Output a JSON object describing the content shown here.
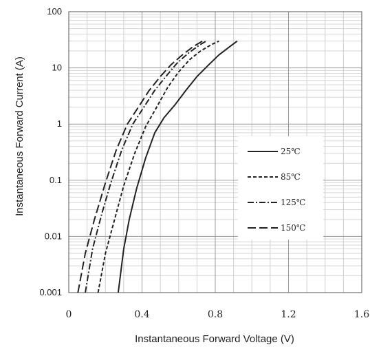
{
  "chart_data": {
    "type": "line",
    "title": "",
    "xlabel": "Instantaneous Forward Voltage (V)",
    "ylabel": "Instantaneous Forward Current (A)",
    "xlim": [
      0,
      1.6
    ],
    "ylim": [
      0.001,
      100
    ],
    "yscale": "log",
    "xticks": [
      {
        "value": 0,
        "label": "0"
      },
      {
        "value": 0.4,
        "label": "0.4"
      },
      {
        "value": 0.8,
        "label": "0.8"
      },
      {
        "value": 1.2,
        "label": "1.2"
      },
      {
        "value": 1.6,
        "label": "1.6"
      }
    ],
    "yticks": [
      {
        "value": 0.001,
        "label": "0.001"
      },
      {
        "value": 0.01,
        "label": "0.01"
      },
      {
        "value": 0.1,
        "label": "0.1"
      },
      {
        "value": 1,
        "label": "1"
      },
      {
        "value": 10,
        "label": "10"
      },
      {
        "value": 100,
        "label": "100"
      }
    ],
    "grid": true,
    "legend_position": "center-right",
    "series": [
      {
        "name": "25℃",
        "style": "solid",
        "color": "#222222",
        "points": [
          [
            0.27,
            0.001
          ],
          [
            0.3,
            0.006
          ],
          [
            0.33,
            0.02
          ],
          [
            0.37,
            0.07
          ],
          [
            0.42,
            0.25
          ],
          [
            0.47,
            0.7
          ],
          [
            0.52,
            1.3
          ],
          [
            0.58,
            2.2
          ],
          [
            0.64,
            4
          ],
          [
            0.7,
            7
          ],
          [
            0.76,
            11
          ],
          [
            0.82,
            17
          ],
          [
            0.88,
            24
          ],
          [
            0.92,
            30
          ]
        ]
      },
      {
        "name": "85℃",
        "style": "dash",
        "color": "#222222",
        "points": [
          [
            0.16,
            0.001
          ],
          [
            0.2,
            0.005
          ],
          [
            0.25,
            0.02
          ],
          [
            0.3,
            0.08
          ],
          [
            0.36,
            0.3
          ],
          [
            0.42,
            0.9
          ],
          [
            0.48,
            2
          ],
          [
            0.54,
            4.5
          ],
          [
            0.6,
            8.5
          ],
          [
            0.66,
            14
          ],
          [
            0.72,
            20
          ],
          [
            0.78,
            26
          ],
          [
            0.82,
            30
          ]
        ]
      },
      {
        "name": "125℃",
        "style": "dashdot",
        "color": "#222222",
        "points": [
          [
            0.09,
            0.001
          ],
          [
            0.13,
            0.006
          ],
          [
            0.18,
            0.025
          ],
          [
            0.23,
            0.09
          ],
          [
            0.29,
            0.35
          ],
          [
            0.35,
            1
          ],
          [
            0.41,
            2
          ],
          [
            0.47,
            4
          ],
          [
            0.53,
            7
          ],
          [
            0.59,
            12
          ],
          [
            0.65,
            18
          ],
          [
            0.71,
            25
          ],
          [
            0.75,
            30
          ]
        ]
      },
      {
        "name": "150℃",
        "style": "longdash",
        "color": "#222222",
        "points": [
          [
            0.05,
            0.001
          ],
          [
            0.09,
            0.005
          ],
          [
            0.14,
            0.02
          ],
          [
            0.2,
            0.09
          ],
          [
            0.26,
            0.35
          ],
          [
            0.32,
            1
          ],
          [
            0.38,
            2
          ],
          [
            0.44,
            4
          ],
          [
            0.5,
            7
          ],
          [
            0.56,
            11.5
          ],
          [
            0.62,
            17
          ],
          [
            0.68,
            24
          ],
          [
            0.73,
            30
          ]
        ]
      }
    ]
  }
}
